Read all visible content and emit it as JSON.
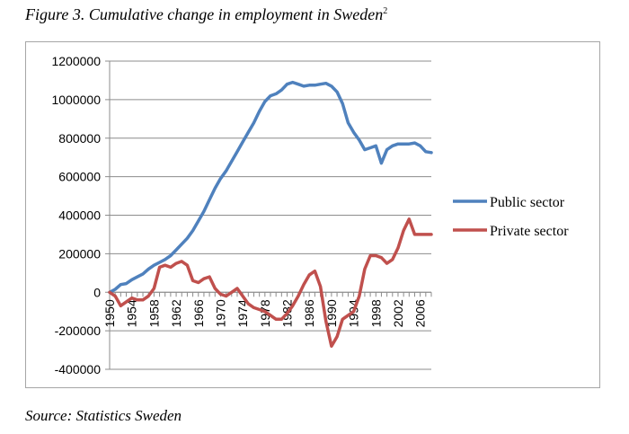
{
  "figure": {
    "caption": "Figure 3. Cumulative change in employment in Sweden",
    "caption_sup": "2",
    "source": "Source: Statistics Sweden"
  },
  "chart_data": {
    "type": "line",
    "title": "",
    "xlabel": "",
    "ylabel": "",
    "ylim": [
      -400000,
      1200000
    ],
    "yticks": [
      1200000,
      1000000,
      800000,
      600000,
      400000,
      200000,
      0,
      -200000,
      -400000
    ],
    "xlim": [
      1950,
      2008
    ],
    "xtick_labels": [
      "1950",
      "1954",
      "1958",
      "1962",
      "1966",
      "1970",
      "1974",
      "1978",
      "1982",
      "1986",
      "1990",
      "1994",
      "1998",
      "2002",
      "2006"
    ],
    "grid": "horizontal",
    "legend": "right",
    "x": [
      1950,
      1951,
      1952,
      1953,
      1954,
      1955,
      1956,
      1957,
      1958,
      1959,
      1960,
      1961,
      1962,
      1963,
      1964,
      1965,
      1966,
      1967,
      1968,
      1969,
      1970,
      1971,
      1972,
      1973,
      1974,
      1975,
      1976,
      1977,
      1978,
      1979,
      1980,
      1981,
      1982,
      1983,
      1984,
      1985,
      1986,
      1987,
      1988,
      1989,
      1990,
      1991,
      1992,
      1993,
      1994,
      1995,
      1996,
      1997,
      1998,
      1999,
      2000,
      2001,
      2002,
      2003,
      2004,
      2005,
      2006,
      2007,
      2008
    ],
    "series": [
      {
        "name": "Public sector",
        "color": "#4f81bd",
        "values": [
          0,
          15000,
          40000,
          45000,
          65000,
          80000,
          95000,
          120000,
          140000,
          155000,
          170000,
          190000,
          220000,
          250000,
          280000,
          320000,
          370000,
          420000,
          480000,
          540000,
          590000,
          630000,
          680000,
          730000,
          780000,
          830000,
          880000,
          940000,
          990000,
          1020000,
          1030000,
          1050000,
          1080000,
          1090000,
          1080000,
          1070000,
          1075000,
          1075000,
          1080000,
          1085000,
          1070000,
          1040000,
          980000,
          880000,
          830000,
          790000,
          740000,
          750000,
          760000,
          670000,
          740000,
          760000,
          770000,
          770000,
          770000,
          775000,
          760000,
          730000,
          725000
        ]
      },
      {
        "name": "Private sector",
        "color": "#c0504d",
        "values": [
          0,
          -20000,
          -70000,
          -50000,
          -30000,
          -40000,
          -40000,
          -20000,
          20000,
          130000,
          140000,
          130000,
          150000,
          160000,
          140000,
          60000,
          50000,
          70000,
          80000,
          20000,
          -10000,
          -20000,
          0,
          20000,
          -20000,
          -60000,
          -80000,
          -90000,
          -100000,
          -120000,
          -140000,
          -140000,
          -110000,
          -70000,
          -20000,
          40000,
          90000,
          110000,
          30000,
          -150000,
          -280000,
          -230000,
          -140000,
          -120000,
          -100000,
          -20000,
          120000,
          190000,
          190000,
          180000,
          150000,
          170000,
          230000,
          320000,
          380000,
          300000,
          300000,
          300000,
          300000
        ]
      }
    ]
  }
}
